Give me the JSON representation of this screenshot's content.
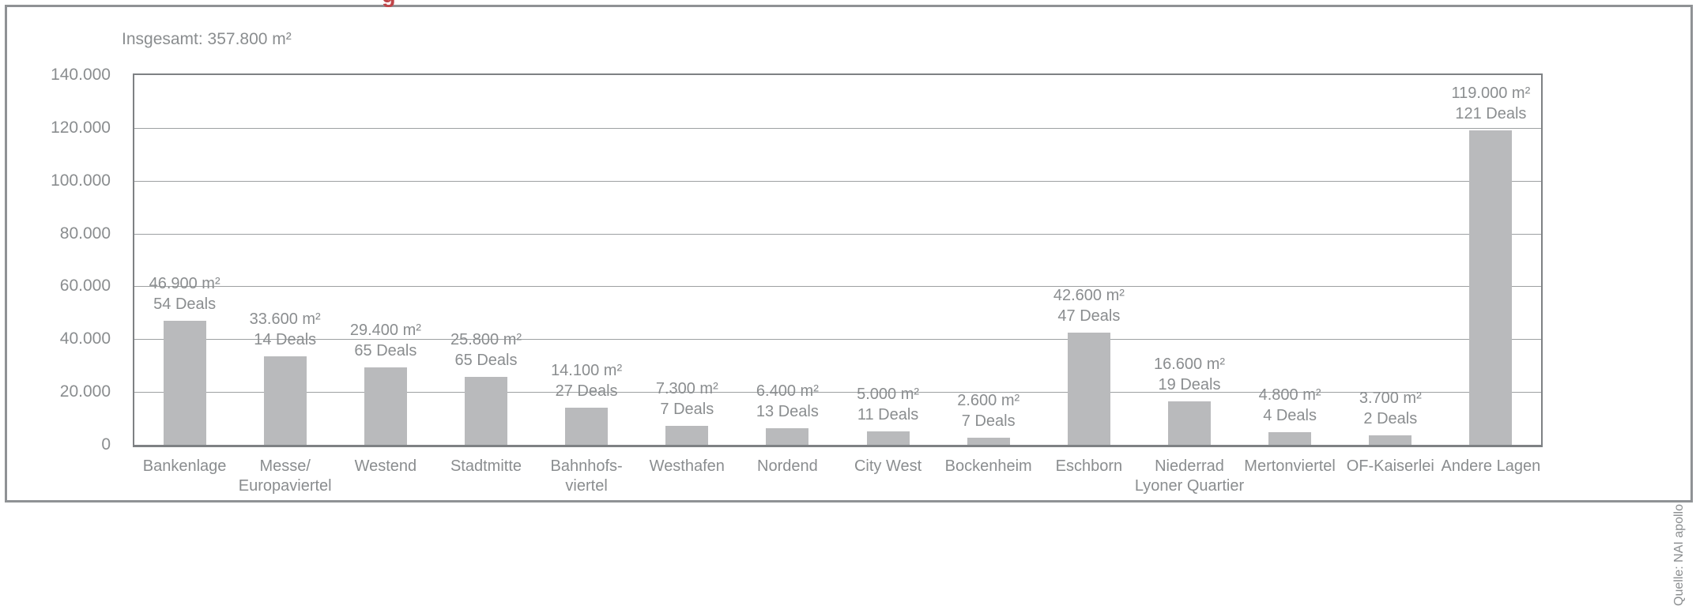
{
  "header": {
    "partial_red_glyph": "g",
    "accent_color": "#c04549"
  },
  "chart": {
    "title": "Insgesamt: 357.800 m²",
    "source": "Quelle: NAI apollo"
  },
  "colors": {
    "bar_fill": "#b9babc",
    "gridline": "#9da0a2",
    "plot_border": "#7e8184",
    "frame_border": "#8f9295",
    "text": "#8a8d8f"
  },
  "chart_data": {
    "type": "bar",
    "title": "Insgesamt: 357.800 m²",
    "ylabel": "",
    "xlabel": "",
    "unit": "m²",
    "ylim": [
      0,
      140000
    ],
    "grid": true,
    "legend": "none",
    "source": "Quelle: NAI apollo",
    "yticks": [
      {
        "label": "140.000",
        "value": 140000
      },
      {
        "label": "120.000",
        "value": 120000
      },
      {
        "label": "100.000",
        "value": 100000
      },
      {
        "label": "80.000",
        "value": 80000
      },
      {
        "label": "60.000",
        "value": 60000
      },
      {
        "label": "40.000",
        "value": 40000
      },
      {
        "label": "20.000",
        "value": 20000
      },
      {
        "label": "0",
        "value": 0
      }
    ],
    "categories": [
      "Bankenlage",
      "Messe/Europaviertel",
      "Westend",
      "Stadtmitte",
      "Bahnhofsviertel",
      "Westhafen",
      "Nordend",
      "City West",
      "Bockenheim",
      "Eschborn",
      "Niederrad Lyoner Quartier",
      "Mertonviertel",
      "OF-Kaiserlei",
      "Andere Lagen"
    ],
    "bars": [
      {
        "name": "Bankenlage",
        "label_lines": [
          "Bankenlage"
        ],
        "value": 46900,
        "value_label": "46.900 m²",
        "deals": 54,
        "deals_label": "54 Deals"
      },
      {
        "name": "Messe/Europaviertel",
        "label_lines": [
          "Messe/",
          "Europaviertel"
        ],
        "value": 33600,
        "value_label": "33.600 m²",
        "deals": 14,
        "deals_label": "14 Deals"
      },
      {
        "name": "Westend",
        "label_lines": [
          "Westend"
        ],
        "value": 29400,
        "value_label": "29.400 m²",
        "deals": 65,
        "deals_label": "65 Deals"
      },
      {
        "name": "Stadtmitte",
        "label_lines": [
          "Stadtmitte"
        ],
        "value": 25800,
        "value_label": "25.800 m²",
        "deals": 65,
        "deals_label": "65 Deals"
      },
      {
        "name": "Bahnhofsviertel",
        "label_lines": [
          "Bahnhofs-",
          "viertel"
        ],
        "value": 14100,
        "value_label": "14.100 m²",
        "deals": 27,
        "deals_label": "27 Deals"
      },
      {
        "name": "Westhafen",
        "label_lines": [
          "Westhafen"
        ],
        "value": 7300,
        "value_label": "7.300 m²",
        "deals": 7,
        "deals_label": "7 Deals"
      },
      {
        "name": "Nordend",
        "label_lines": [
          "Nordend"
        ],
        "value": 6400,
        "value_label": "6.400 m²",
        "deals": 13,
        "deals_label": "13 Deals"
      },
      {
        "name": "City West",
        "label_lines": [
          "City West"
        ],
        "value": 5000,
        "value_label": "5.000 m²",
        "deals": 11,
        "deals_label": "11 Deals"
      },
      {
        "name": "Bockenheim",
        "label_lines": [
          "Bockenheim"
        ],
        "value": 2600,
        "value_label": "2.600 m²",
        "deals": 7,
        "deals_label": "7 Deals"
      },
      {
        "name": "Eschborn",
        "label_lines": [
          "Eschborn"
        ],
        "value": 42600,
        "value_label": "42.600 m²",
        "deals": 47,
        "deals_label": "47 Deals"
      },
      {
        "name": "Niederrad Lyoner Quartier",
        "label_lines": [
          "Niederrad",
          "Lyoner Quartier"
        ],
        "value": 16600,
        "value_label": "16.600 m²",
        "deals": 19,
        "deals_label": "19 Deals"
      },
      {
        "name": "Mertonviertel",
        "label_lines": [
          "Mertonviertel"
        ],
        "value": 4800,
        "value_label": "4.800 m²",
        "deals": 4,
        "deals_label": "4 Deals"
      },
      {
        "name": "OF-Kaiserlei",
        "label_lines": [
          "OF-Kaiserlei"
        ],
        "value": 3700,
        "value_label": "3.700 m²",
        "deals": 2,
        "deals_label": "2 Deals"
      },
      {
        "name": "Andere Lagen",
        "label_lines": [
          "Andere Lagen"
        ],
        "value": 119000,
        "value_label": "119.000 m²",
        "deals": 121,
        "deals_label": "121 Deals"
      }
    ]
  }
}
